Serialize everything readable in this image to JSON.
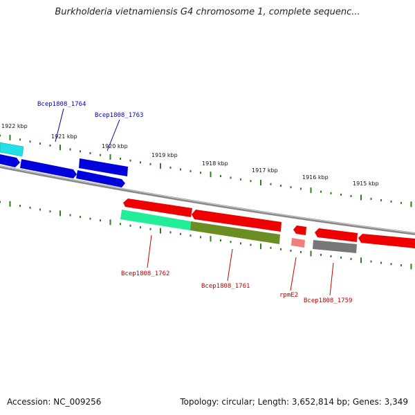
{
  "title": "Burkholderia vietnamiensis G4 chromosome 1, complete sequenc...",
  "footer": {
    "accession": "Accession: NC_009256",
    "summary": "Topology: circular; Length: 3,652,814 bp; Genes: 3,349"
  },
  "colors": {
    "forward_label": "#0000aa",
    "reverse_label": "#bb0000",
    "tick": "#2e7d1a",
    "backbone": "#888888"
  },
  "ticks": [
    {
      "label": "1922 kbp"
    },
    {
      "label": "1921 kbp"
    },
    {
      "label": "1920 kbp"
    },
    {
      "label": "1919 kbp"
    },
    {
      "label": "1918 kbp"
    },
    {
      "label": "1917 kbp"
    },
    {
      "label": "1916 kbp"
    },
    {
      "label": "1915 kbp"
    }
  ],
  "genes": [
    {
      "name": "Bcep1808_1764",
      "strand": "forward",
      "color": "#0000dd"
    },
    {
      "name": "Bcep1808_1763",
      "strand": "forward",
      "color": "#0000dd"
    },
    {
      "name": "Bcep1808_1762",
      "strand": "reverse",
      "color": "#ff0000"
    },
    {
      "name": "Bcep1808_1761",
      "strand": "reverse",
      "color": "#ff0000"
    },
    {
      "name": "rpmE2",
      "strand": "reverse",
      "color": "#ff0000"
    },
    {
      "name": "Bcep1808_1759",
      "strand": "reverse",
      "color": "#ff0000"
    }
  ],
  "feature_colors": {
    "cyan": "#22e0e8",
    "blue": "#0000dd",
    "red": "#ee0000",
    "teal": "#22ee99",
    "olive": "#6b8e23",
    "pink": "#f08080",
    "gray": "#777777"
  }
}
